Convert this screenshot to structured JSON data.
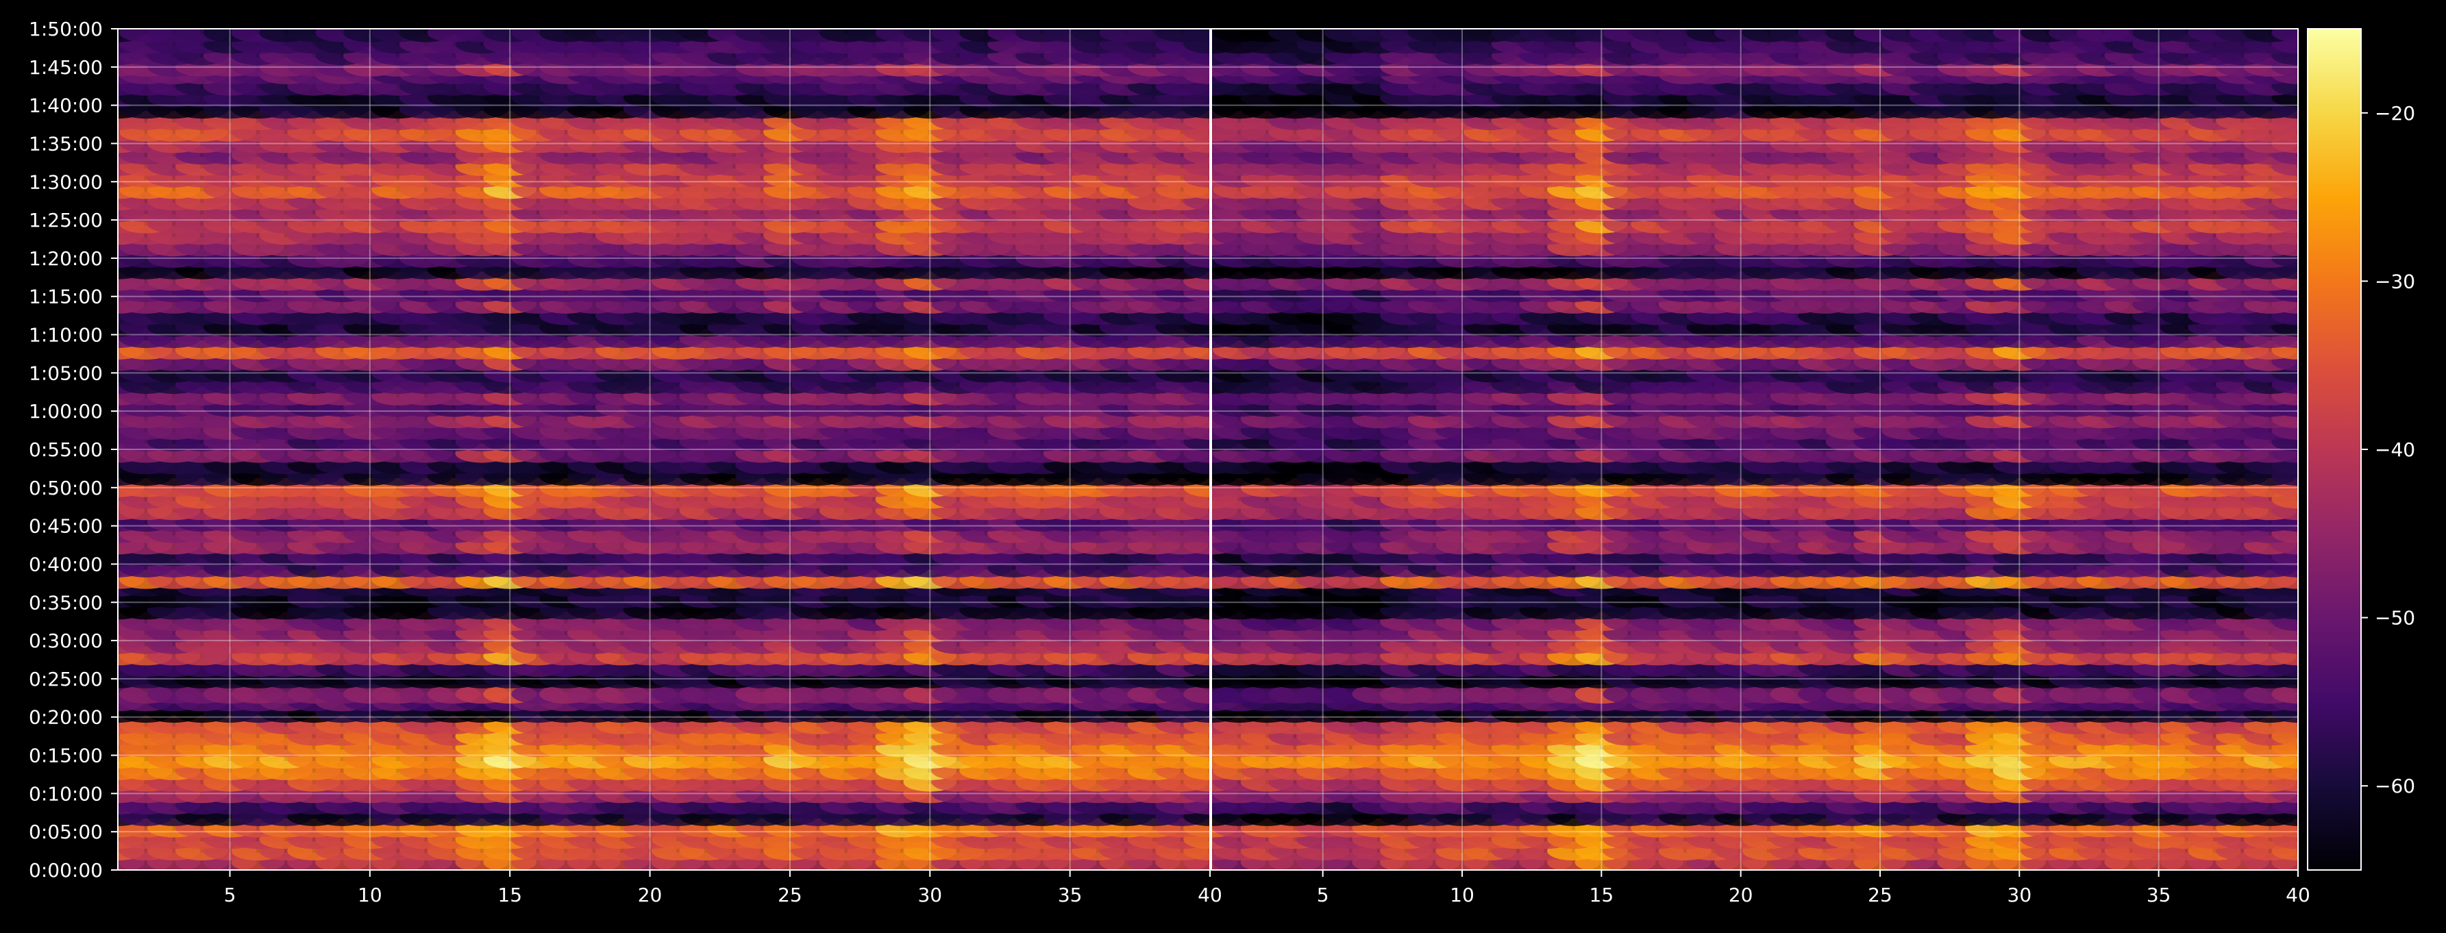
{
  "chart_data": {
    "type": "heatmap",
    "title": "",
    "panels": [
      {
        "name": "",
        "x_range": [
          1,
          40
        ]
      },
      {
        "name": "",
        "x_range": [
          1,
          40
        ]
      }
    ],
    "x_ticks": [
      5,
      10,
      15,
      20,
      25,
      30,
      35,
      40
    ],
    "x_tick_labels": [
      "5",
      "10",
      "15",
      "20",
      "25",
      "30",
      "35",
      "40"
    ],
    "y_range_seconds": [
      0,
      6600
    ],
    "y_ticks": [
      "0:00:00",
      "0:05:00",
      "0:10:00",
      "0:15:00",
      "0:20:00",
      "0:25:00",
      "0:30:00",
      "0:35:00",
      "0:40:00",
      "0:45:00",
      "0:50:00",
      "0:55:00",
      "1:00:00",
      "1:05:00",
      "1:10:00",
      "1:15:00",
      "1:20:00",
      "1:25:00",
      "1:30:00",
      "1:35:00",
      "1:40:00",
      "1:45:00",
      "1:50:00"
    ],
    "colorbar": {
      "range": [
        -65,
        -15
      ],
      "ticks": [
        -20,
        -30,
        -40,
        -50,
        -60
      ],
      "tick_labels": [
        "−20",
        "−30",
        "−40",
        "−50",
        "−60"
      ],
      "colormap": "inferno"
    },
    "grid": true,
    "rows": [
      {
        "t": "0:01:00",
        "base": -40
      },
      {
        "t": "0:02:30",
        "base": -35
      },
      {
        "t": "0:04:00",
        "base": -36
      },
      {
        "t": "0:05:30",
        "base": -32
      },
      {
        "t": "0:07:00",
        "base": -60
      },
      {
        "t": "0:08:30",
        "base": -54
      },
      {
        "t": "0:10:00",
        "base": -44
      },
      {
        "t": "0:11:30",
        "base": -36
      },
      {
        "t": "0:13:00",
        "base": -30
      },
      {
        "t": "0:14:30",
        "base": -26
      },
      {
        "t": "0:16:00",
        "base": -30
      },
      {
        "t": "0:17:30",
        "base": -34
      },
      {
        "t": "0:19:00",
        "base": -36
      },
      {
        "t": "0:20:30",
        "base": -62
      },
      {
        "t": "0:22:00",
        "base": -52
      },
      {
        "t": "0:23:00",
        "base": -48
      },
      {
        "t": "0:25:00",
        "base": -62
      },
      {
        "t": "0:26:30",
        "base": -55
      },
      {
        "t": "0:28:00",
        "base": -37
      },
      {
        "t": "0:29:30",
        "base": -44
      },
      {
        "t": "0:31:00",
        "base": -46
      },
      {
        "t": "0:32:30",
        "base": -48
      },
      {
        "t": "0:34:00",
        "base": -62
      },
      {
        "t": "0:35:30",
        "base": -61
      },
      {
        "t": "0:37:00",
        "base": -60
      },
      {
        "t": "0:38:00",
        "base": -33
      },
      {
        "t": "0:39:30",
        "base": -55
      },
      {
        "t": "0:41:00",
        "base": -56
      },
      {
        "t": "0:42:30",
        "base": -45
      },
      {
        "t": "0:44:00",
        "base": -46
      },
      {
        "t": "0:45:30",
        "base": -52
      },
      {
        "t": "0:47:00",
        "base": -40
      },
      {
        "t": "0:48:30",
        "base": -38
      },
      {
        "t": "0:50:00",
        "base": -34
      },
      {
        "t": "0:51:30",
        "base": -62
      },
      {
        "t": "0:53:00",
        "base": -60
      },
      {
        "t": "0:54:30",
        "base": -48
      },
      {
        "t": "0:56:00",
        "base": -54
      },
      {
        "t": "0:57:30",
        "base": -50
      },
      {
        "t": "0:59:00",
        "base": -46
      },
      {
        "t": "1:00:30",
        "base": -52
      },
      {
        "t": "1:02:00",
        "base": -48
      },
      {
        "t": "1:03:30",
        "base": -56
      },
      {
        "t": "1:05:00",
        "base": -58
      },
      {
        "t": "1:06:30",
        "base": -48
      },
      {
        "t": "1:08:00",
        "base": -35
      },
      {
        "t": "1:09:30",
        "base": -52
      },
      {
        "t": "1:11:00",
        "base": -60
      },
      {
        "t": "1:12:30",
        "base": -58
      },
      {
        "t": "1:14:00",
        "base": -48
      },
      {
        "t": "1:15:30",
        "base": -52
      },
      {
        "t": "1:17:00",
        "base": -44
      },
      {
        "t": "1:18:30",
        "base": -62
      },
      {
        "t": "1:20:00",
        "base": -54
      },
      {
        "t": "1:21:30",
        "base": -46
      },
      {
        "t": "1:23:00",
        "base": -42
      },
      {
        "t": "1:24:30",
        "base": -38
      },
      {
        "t": "1:26:00",
        "base": -44
      },
      {
        "t": "1:27:30",
        "base": -40
      },
      {
        "t": "1:29:00",
        "base": -34
      },
      {
        "t": "1:30:30",
        "base": -38
      },
      {
        "t": "1:32:00",
        "base": -40
      },
      {
        "t": "1:33:30",
        "base": -46
      },
      {
        "t": "1:35:00",
        "base": -42
      },
      {
        "t": "1:36:30",
        "base": -36
      },
      {
        "t": "1:38:00",
        "base": -40
      },
      {
        "t": "1:39:30",
        "base": -62
      },
      {
        "t": "1:41:00",
        "base": -60
      },
      {
        "t": "1:42:30",
        "base": -56
      },
      {
        "t": "1:44:00",
        "base": -52
      },
      {
        "t": "1:45:00",
        "base": -48
      },
      {
        "t": "1:46:30",
        "base": -54
      },
      {
        "t": "1:48:00",
        "base": -56
      },
      {
        "t": "1:49:30",
        "base": -58
      }
    ],
    "hot_columns": [
      {
        "x": 15,
        "boost": 10
      },
      {
        "x": 30,
        "boost": 10
      },
      {
        "x": 14,
        "boost": 6
      },
      {
        "x": 29,
        "boost": 6
      },
      {
        "x": 25,
        "boost": 4
      }
    ]
  }
}
